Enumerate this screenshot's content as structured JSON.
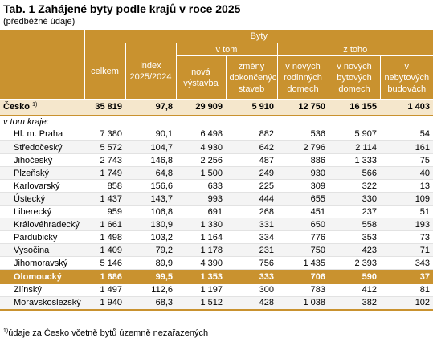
{
  "title": "Tab. 1 Zahájené byty podle krajů v roce 2025",
  "subtitle": "(předběžné údaje)",
  "header": {
    "group": "Byty",
    "celkem": "celkem",
    "index": "index 2025/2024",
    "v_tom": "v tom",
    "z_toho": "z toho",
    "nova": "nová výstavba",
    "zmeny": "změny dokončených staveb",
    "rodinne": "v nových rodinných domech",
    "bytove": "v nových bytových domech",
    "nebytove": "v nebytových budovách"
  },
  "total": {
    "name": "Česko",
    "sup": "1)",
    "values": [
      "35 819",
      "97,8",
      "29 909",
      "5 910",
      "12 750",
      "16 155",
      "1 403"
    ]
  },
  "section_label": "v tom kraje:",
  "rows": [
    {
      "name": "Hl. m. Praha",
      "values": [
        "7 380",
        "90,1",
        "6 498",
        "882",
        "536",
        "5 907",
        "54"
      ]
    },
    {
      "name": "Středočeský",
      "values": [
        "5 572",
        "104,7",
        "4 930",
        "642",
        "2 796",
        "2 114",
        "161"
      ]
    },
    {
      "name": "Jihočeský",
      "values": [
        "2 743",
        "146,8",
        "2 256",
        "487",
        "886",
        "1 333",
        "75"
      ]
    },
    {
      "name": "Plzeňský",
      "values": [
        "1 749",
        "64,8",
        "1 500",
        "249",
        "930",
        "566",
        "40"
      ]
    },
    {
      "name": "Karlovarský",
      "values": [
        "858",
        "156,6",
        "633",
        "225",
        "309",
        "322",
        "13"
      ]
    },
    {
      "name": "Ústecký",
      "values": [
        "1 437",
        "143,7",
        "993",
        "444",
        "655",
        "330",
        "109"
      ]
    },
    {
      "name": "Liberecký",
      "values": [
        "959",
        "106,8",
        "691",
        "268",
        "451",
        "237",
        "51"
      ]
    },
    {
      "name": "Královéhradecký",
      "values": [
        "1 661",
        "130,9",
        "1 330",
        "331",
        "650",
        "558",
        "193"
      ]
    },
    {
      "name": "Pardubický",
      "values": [
        "1 498",
        "103,2",
        "1 164",
        "334",
        "776",
        "353",
        "73"
      ]
    },
    {
      "name": "Vysočina",
      "values": [
        "1 409",
        "79,2",
        "1 178",
        "231",
        "750",
        "423",
        "71"
      ]
    },
    {
      "name": "Jihomoravský",
      "values": [
        "5 146",
        "89,9",
        "4 390",
        "756",
        "1 435",
        "2 393",
        "343"
      ]
    },
    {
      "name": "Olomoucký",
      "values": [
        "1 686",
        "99,5",
        "1 353",
        "333",
        "706",
        "590",
        "37"
      ]
    },
    {
      "name": "Zlínský",
      "values": [
        "1 497",
        "112,6",
        "1 197",
        "300",
        "783",
        "412",
        "81"
      ]
    },
    {
      "name": "Moravskoslezský",
      "values": [
        "1 940",
        "68,3",
        "1 512",
        "428",
        "1 038",
        "382",
        "102"
      ]
    }
  ],
  "footnote": {
    "sup": "1)",
    "text": "údaje za Česko včetně bytů územně nezařazených"
  }
}
